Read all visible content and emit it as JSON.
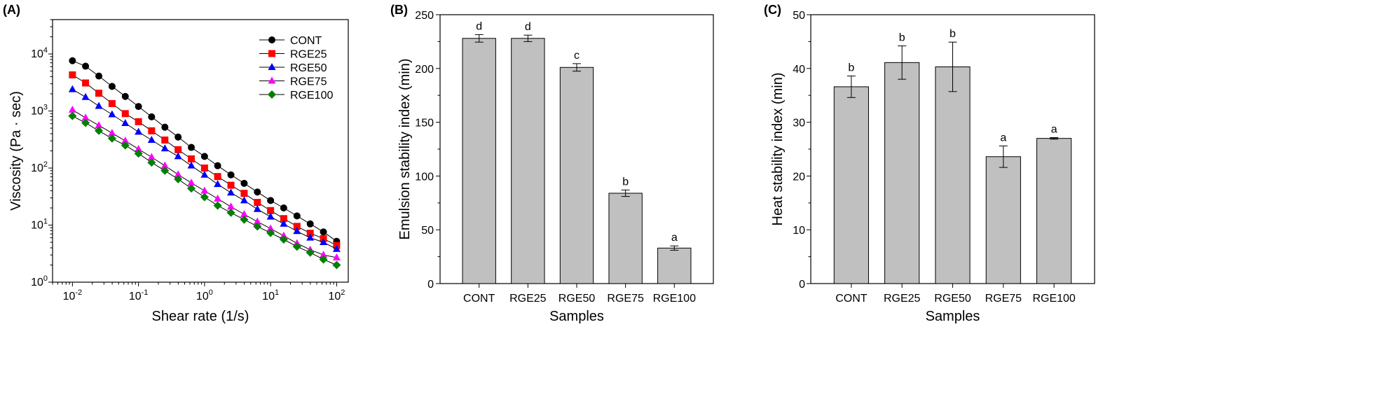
{
  "chart_data": [
    {
      "panel": "(A)",
      "type": "scatter",
      "xlabel": "Shear rate (1/s)",
      "ylabel": "Viscosity (Pa · sec)",
      "xscale": "log",
      "yscale": "log",
      "xlim": [
        0.005,
        150
      ],
      "ylim": [
        1,
        40000
      ],
      "xticks": [
        0.01,
        0.1,
        1,
        10,
        100
      ],
      "yticks": [
        1,
        10,
        100,
        1000,
        10000
      ],
      "legend": "top-right",
      "x": [
        0.01,
        0.0158,
        0.0251,
        0.0398,
        0.0631,
        0.1,
        0.158,
        0.251,
        0.398,
        0.631,
        1,
        1.58,
        2.51,
        3.98,
        6.31,
        10,
        15.8,
        25.1,
        39.8,
        63.1,
        100
      ],
      "series": [
        {
          "name": "CONT",
          "color": "#000000",
          "marker": "circle",
          "values": [
            7600,
            6100,
            4100,
            2700,
            1800,
            1200,
            790,
            520,
            350,
            230,
            160,
            110,
            76,
            54,
            38,
            27,
            20,
            14.5,
            10.5,
            7.6,
            5.2
          ]
        },
        {
          "name": "RGE25",
          "color": "#ff0000",
          "marker": "square",
          "values": [
            4300,
            3100,
            2050,
            1350,
            900,
            650,
            450,
            310,
            210,
            145,
            100,
            71,
            50,
            36,
            25,
            18,
            13,
            9.5,
            7.2,
            5.8,
            4.4
          ]
        },
        {
          "name": "RGE50",
          "color": "#0000ff",
          "marker": "triangle-up",
          "values": [
            2400,
            1750,
            1220,
            870,
            610,
            430,
            310,
            220,
            160,
            110,
            76,
            52,
            37,
            27,
            19,
            14,
            10.5,
            7.8,
            6.0,
            5.0,
            3.8
          ]
        },
        {
          "name": "RGE75",
          "color": "#ff00ff",
          "marker": "triangle-up",
          "values": [
            1050,
            760,
            560,
            410,
            300,
            215,
            155,
            110,
            77,
            55,
            40,
            29,
            21,
            15.5,
            11.5,
            8.7,
            6.5,
            4.8,
            3.7,
            3.0,
            2.7
          ]
        },
        {
          "name": "RGE100",
          "color": "#008000",
          "marker": "diamond",
          "values": [
            820,
            620,
            450,
            330,
            250,
            180,
            125,
            90,
            64,
            44,
            31,
            22,
            16.5,
            12.5,
            9.5,
            7.3,
            5.6,
            4.2,
            3.3,
            2.5,
            2.0
          ]
        }
      ]
    },
    {
      "panel": "(B)",
      "type": "bar",
      "xlabel": "Samples",
      "ylabel": "Emulsion stability index (min)",
      "ylim": [
        0,
        250
      ],
      "yticks": [
        0,
        50,
        100,
        150,
        200,
        250
      ],
      "categories": [
        "CONT",
        "RGE25",
        "RGE50",
        "RGE75",
        "RGE100"
      ],
      "values": [
        228,
        228,
        201,
        84,
        33
      ],
      "errors": [
        3.5,
        3,
        3.5,
        3,
        2
      ],
      "labels": [
        "d",
        "d",
        "c",
        "b",
        "a"
      ],
      "bar_color": "#c0c0c0"
    },
    {
      "panel": "(C)",
      "type": "bar",
      "xlabel": "Samples",
      "ylabel": "Heat stability index (min)",
      "ylim": [
        0,
        50
      ],
      "yticks": [
        0,
        10,
        20,
        30,
        40,
        50
      ],
      "categories": [
        "CONT",
        "RGE25",
        "RGE50",
        "RGE75",
        "RGE100"
      ],
      "values": [
        36.6,
        41.1,
        40.3,
        23.6,
        27.0
      ],
      "errors": [
        2.0,
        3.1,
        4.6,
        2.0,
        0.15
      ],
      "labels": [
        "b",
        "b",
        "b",
        "a",
        "a"
      ],
      "bar_color": "#c0c0c0"
    }
  ]
}
